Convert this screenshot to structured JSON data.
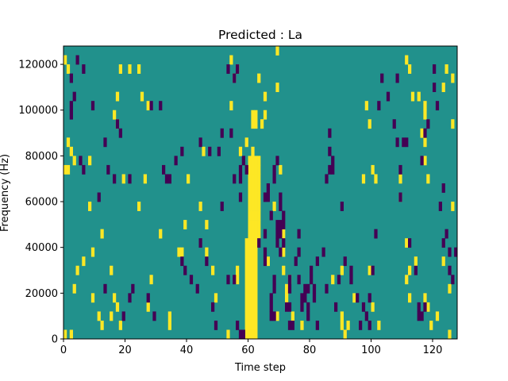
{
  "chart_data": {
    "type": "heatmap",
    "title": "Predicted : La",
    "xlabel": "Time step",
    "ylabel": "Frequency (Hz)",
    "xlim": [
      0,
      128
    ],
    "ylim": [
      0,
      128000
    ],
    "x_ticks": [
      0,
      20,
      40,
      60,
      80,
      100,
      120
    ],
    "y_ticks": [
      0,
      20000,
      40000,
      60000,
      80000,
      100000,
      120000
    ],
    "y_tick_labels": [
      "0",
      "20000",
      "40000",
      "60000",
      "80000",
      "100000",
      "120000"
    ],
    "grid": false,
    "legend": "none",
    "colors": {
      "background": "#21918c",
      "high": "#fde725",
      "low": "#440154"
    },
    "level_values": {
      "background": 0,
      "high": 1,
      "low": -1
    },
    "cell_width_time_steps": 1,
    "cell_height_hz": 4000,
    "high_cells": [
      [
        1,
        124000
      ],
      [
        2,
        120000
      ],
      [
        2,
        76000
      ],
      [
        1,
        76000
      ],
      [
        4,
        80000
      ],
      [
        2,
        88000
      ],
      [
        3,
        84000
      ],
      [
        1,
        4000
      ],
      [
        3,
        4000
      ],
      [
        5,
        32000
      ],
      [
        4,
        24000
      ],
      [
        7,
        36000
      ],
      [
        9,
        80000
      ],
      [
        9,
        60000
      ],
      [
        10,
        40000
      ],
      [
        13,
        48000
      ],
      [
        10,
        20000
      ],
      [
        12,
        12000
      ],
      [
        13,
        8000
      ],
      [
        16,
        12000
      ],
      [
        17,
        20000
      ],
      [
        16,
        32000
      ],
      [
        18,
        16000
      ],
      [
        19,
        8000
      ],
      [
        20,
        72000
      ],
      [
        18,
        96000
      ],
      [
        17,
        100000
      ],
      [
        18,
        108000
      ],
      [
        19,
        120000
      ],
      [
        22,
        120000
      ],
      [
        25,
        60000
      ],
      [
        27,
        72000
      ],
      [
        28,
        104000
      ],
      [
        26,
        108000
      ],
      [
        25,
        120000
      ],
      [
        29,
        28000
      ],
      [
        28,
        16000
      ],
      [
        32,
        48000
      ],
      [
        35,
        8000
      ],
      [
        35,
        12000
      ],
      [
        38,
        40000
      ],
      [
        39,
        40000
      ],
      [
        40,
        52000
      ],
      [
        41,
        72000
      ],
      [
        46,
        84000
      ],
      [
        45,
        60000
      ],
      [
        47,
        52000
      ],
      [
        47,
        40000
      ],
      [
        49,
        32000
      ],
      [
        50,
        20000
      ],
      [
        54,
        4000
      ],
      [
        57,
        32000
      ],
      [
        57,
        28000
      ],
      [
        58,
        84000
      ],
      [
        55,
        104000
      ],
      [
        56,
        116000
      ],
      [
        57,
        120000
      ],
      [
        55,
        124000
      ],
      [
        60,
        88000
      ],
      [
        62,
        84000
      ],
      [
        61,
        80000
      ],
      [
        61,
        76000
      ],
      [
        61,
        72000
      ],
      [
        61,
        68000
      ],
      [
        61,
        64000
      ],
      [
        61,
        60000
      ],
      [
        61,
        56000
      ],
      [
        61,
        52000
      ],
      [
        61,
        48000
      ],
      [
        60,
        44000
      ],
      [
        60,
        40000
      ],
      [
        60,
        36000
      ],
      [
        60,
        32000
      ],
      [
        60,
        28000
      ],
      [
        60,
        24000
      ],
      [
        60,
        20000
      ],
      [
        60,
        16000
      ],
      [
        60,
        12000
      ],
      [
        60,
        8000
      ],
      [
        60,
        4000
      ],
      [
        61,
        4000
      ],
      [
        62,
        4000
      ],
      [
        63,
        4000
      ],
      [
        62,
        80000
      ],
      [
        63,
        80000
      ],
      [
        64,
        80000
      ],
      [
        62,
        76000
      ],
      [
        63,
        76000
      ],
      [
        64,
        76000
      ],
      [
        62,
        72000
      ],
      [
        63,
        72000
      ],
      [
        64,
        72000
      ],
      [
        62,
        68000
      ],
      [
        63,
        68000
      ],
      [
        64,
        68000
      ],
      [
        62,
        64000
      ],
      [
        63,
        64000
      ],
      [
        64,
        64000
      ],
      [
        62,
        60000
      ],
      [
        63,
        60000
      ],
      [
        64,
        60000
      ],
      [
        62,
        56000
      ],
      [
        63,
        56000
      ],
      [
        64,
        56000
      ],
      [
        62,
        52000
      ],
      [
        63,
        52000
      ],
      [
        64,
        52000
      ],
      [
        62,
        48000
      ],
      [
        63,
        48000
      ],
      [
        64,
        48000
      ],
      [
        61,
        44000
      ],
      [
        62,
        44000
      ],
      [
        63,
        44000
      ],
      [
        61,
        40000
      ],
      [
        62,
        40000
      ],
      [
        63,
        40000
      ],
      [
        61,
        36000
      ],
      [
        62,
        36000
      ],
      [
        63,
        36000
      ],
      [
        61,
        32000
      ],
      [
        62,
        32000
      ],
      [
        63,
        32000
      ],
      [
        61,
        28000
      ],
      [
        62,
        28000
      ],
      [
        63,
        28000
      ],
      [
        61,
        24000
      ],
      [
        62,
        24000
      ],
      [
        63,
        24000
      ],
      [
        61,
        20000
      ],
      [
        62,
        20000
      ],
      [
        63,
        20000
      ],
      [
        61,
        16000
      ],
      [
        62,
        16000
      ],
      [
        63,
        16000
      ],
      [
        61,
        12000
      ],
      [
        62,
        12000
      ],
      [
        63,
        12000
      ],
      [
        61,
        8000
      ],
      [
        62,
        8000
      ],
      [
        63,
        8000
      ],
      [
        62,
        100000
      ],
      [
        63,
        100000
      ],
      [
        62,
        96000
      ],
      [
        63,
        96000
      ],
      [
        65,
        96000
      ],
      [
        64,
        116000
      ],
      [
        66,
        100000
      ],
      [
        66,
        108000
      ],
      [
        70,
        112000
      ],
      [
        70,
        128000
      ],
      [
        71,
        76000
      ],
      [
        69,
        60000
      ],
      [
        67,
        36000
      ],
      [
        70,
        12000
      ],
      [
        72,
        48000
      ],
      [
        72,
        40000
      ],
      [
        72,
        32000
      ],
      [
        73,
        24000
      ],
      [
        73,
        20000
      ],
      [
        74,
        28000
      ],
      [
        75,
        12000
      ],
      [
        78,
        8000
      ],
      [
        88,
        28000
      ],
      [
        91,
        32000
      ],
      [
        91,
        12000
      ],
      [
        92,
        4000
      ],
      [
        91,
        8000
      ],
      [
        93,
        8000
      ],
      [
        95,
        20000
      ],
      [
        98,
        72000
      ],
      [
        99,
        104000
      ],
      [
        100,
        96000
      ],
      [
        101,
        76000
      ],
      [
        100,
        32000
      ],
      [
        101,
        16000
      ],
      [
        102,
        72000
      ],
      [
        103,
        8000
      ],
      [
        110,
        64000
      ],
      [
        112,
        44000
      ],
      [
        114,
        108000
      ],
      [
        116,
        108000
      ],
      [
        112,
        124000
      ],
      [
        113,
        120000
      ],
      [
        110,
        72000
      ],
      [
        113,
        32000
      ],
      [
        112,
        28000
      ],
      [
        113,
        20000
      ],
      [
        115,
        36000
      ],
      [
        118,
        80000
      ],
      [
        118,
        88000
      ],
      [
        117,
        92000
      ],
      [
        118,
        100000
      ],
      [
        118,
        104000
      ],
      [
        119,
        72000
      ],
      [
        118,
        20000
      ],
      [
        119,
        16000
      ],
      [
        120,
        8000
      ],
      [
        122,
        12000
      ],
      [
        124,
        36000
      ],
      [
        126,
        24000
      ],
      [
        126,
        4000
      ],
      [
        127,
        60000
      ],
      [
        127,
        96000
      ],
      [
        127,
        116000
      ],
      [
        125,
        120000
      ],
      [
        124,
        112000
      ]
    ],
    "low_cells": [
      [
        3,
        104000
      ],
      [
        4,
        108000
      ],
      [
        3,
        116000
      ],
      [
        3,
        100000
      ],
      [
        5,
        124000
      ],
      [
        7,
        120000
      ],
      [
        7,
        76000
      ],
      [
        6,
        80000
      ],
      [
        10,
        104000
      ],
      [
        14,
        24000
      ],
      [
        12,
        64000
      ],
      [
        14,
        88000
      ],
      [
        15,
        76000
      ],
      [
        17,
        72000
      ],
      [
        18,
        96000
      ],
      [
        19,
        92000
      ],
      [
        20,
        12000
      ],
      [
        22,
        72000
      ],
      [
        22,
        20000
      ],
      [
        23,
        24000
      ],
      [
        28,
        20000
      ],
      [
        29,
        104000
      ],
      [
        30,
        12000
      ],
      [
        32,
        104000
      ],
      [
        33,
        76000
      ],
      [
        34,
        72000
      ],
      [
        35,
        72000
      ],
      [
        37,
        80000
      ],
      [
        39,
        84000
      ],
      [
        39,
        36000
      ],
      [
        40,
        32000
      ],
      [
        42,
        28000
      ],
      [
        44,
        24000
      ],
      [
        45,
        44000
      ],
      [
        45,
        88000
      ],
      [
        47,
        36000
      ],
      [
        48,
        84000
      ],
      [
        49,
        16000
      ],
      [
        50,
        8000
      ],
      [
        51,
        84000
      ],
      [
        52,
        92000
      ],
      [
        52,
        60000
      ],
      [
        54,
        28000
      ],
      [
        56,
        28000
      ],
      [
        55,
        92000
      ],
      [
        56,
        72000
      ],
      [
        54,
        120000
      ],
      [
        56,
        116000
      ],
      [
        57,
        120000
      ],
      [
        58,
        64000
      ],
      [
        58,
        72000
      ],
      [
        58,
        76000
      ],
      [
        59,
        80000
      ],
      [
        60,
        76000
      ],
      [
        57,
        8000
      ],
      [
        58,
        4000
      ],
      [
        59,
        4000
      ],
      [
        64,
        44000
      ],
      [
        66,
        48000
      ],
      [
        66,
        36000
      ],
      [
        66,
        40000
      ],
      [
        66,
        64000
      ],
      [
        67,
        64000
      ],
      [
        67,
        68000
      ],
      [
        68,
        56000
      ],
      [
        69,
        72000
      ],
      [
        69,
        76000
      ],
      [
        70,
        80000
      ],
      [
        69,
        28000
      ],
      [
        69,
        24000
      ],
      [
        68,
        20000
      ],
      [
        68,
        16000
      ],
      [
        68,
        12000
      ],
      [
        69,
        12000
      ],
      [
        70,
        52000
      ],
      [
        70,
        48000
      ],
      [
        70,
        44000
      ],
      [
        71,
        52000
      ],
      [
        71,
        48000
      ],
      [
        72,
        44000
      ],
      [
        71,
        40000
      ],
      [
        71,
        60000
      ],
      [
        71,
        64000
      ],
      [
        72,
        56000
      ],
      [
        72,
        52000
      ],
      [
        74,
        24000
      ],
      [
        74,
        28000
      ],
      [
        74,
        16000
      ],
      [
        73,
        16000
      ],
      [
        74,
        8000
      ],
      [
        75,
        8000
      ],
      [
        76,
        36000
      ],
      [
        77,
        48000
      ],
      [
        77,
        40000
      ],
      [
        77,
        28000
      ],
      [
        78,
        20000
      ],
      [
        78,
        16000
      ],
      [
        79,
        24000
      ],
      [
        79,
        20000
      ],
      [
        80,
        16000
      ],
      [
        80,
        24000
      ],
      [
        80,
        12000
      ],
      [
        81,
        32000
      ],
      [
        81,
        28000
      ],
      [
        82,
        24000
      ],
      [
        82,
        20000
      ],
      [
        83,
        8000
      ],
      [
        83,
        36000
      ],
      [
        85,
        40000
      ],
      [
        86,
        24000
      ],
      [
        86,
        72000
      ],
      [
        87,
        76000
      ],
      [
        87,
        84000
      ],
      [
        88,
        80000
      ],
      [
        87,
        92000
      ],
      [
        88,
        76000
      ],
      [
        90,
        28000
      ],
      [
        89,
        16000
      ],
      [
        91,
        60000
      ],
      [
        92,
        36000
      ],
      [
        94,
        32000
      ],
      [
        94,
        28000
      ],
      [
        96,
        20000
      ],
      [
        98,
        16000
      ],
      [
        99,
        12000
      ],
      [
        97,
        8000
      ],
      [
        100,
        20000
      ],
      [
        100,
        8000
      ],
      [
        101,
        32000
      ],
      [
        102,
        48000
      ],
      [
        103,
        104000
      ],
      [
        104,
        116000
      ],
      [
        106,
        108000
      ],
      [
        108,
        96000
      ],
      [
        109,
        116000
      ],
      [
        109,
        88000
      ],
      [
        110,
        76000
      ],
      [
        110,
        64000
      ],
      [
        111,
        88000
      ],
      [
        112,
        88000
      ],
      [
        113,
        44000
      ],
      [
        115,
        32000
      ],
      [
        116,
        16000
      ],
      [
        116,
        12000
      ],
      [
        117,
        12000
      ],
      [
        118,
        16000
      ],
      [
        117,
        80000
      ],
      [
        118,
        92000
      ],
      [
        119,
        96000
      ],
      [
        121,
        112000
      ],
      [
        121,
        120000
      ],
      [
        122,
        104000
      ],
      [
        124,
        68000
      ],
      [
        123,
        60000
      ],
      [
        125,
        48000
      ],
      [
        124,
        44000
      ],
      [
        126,
        40000
      ],
      [
        126,
        32000
      ],
      [
        127,
        28000
      ],
      [
        128,
        40000
      ]
    ]
  }
}
